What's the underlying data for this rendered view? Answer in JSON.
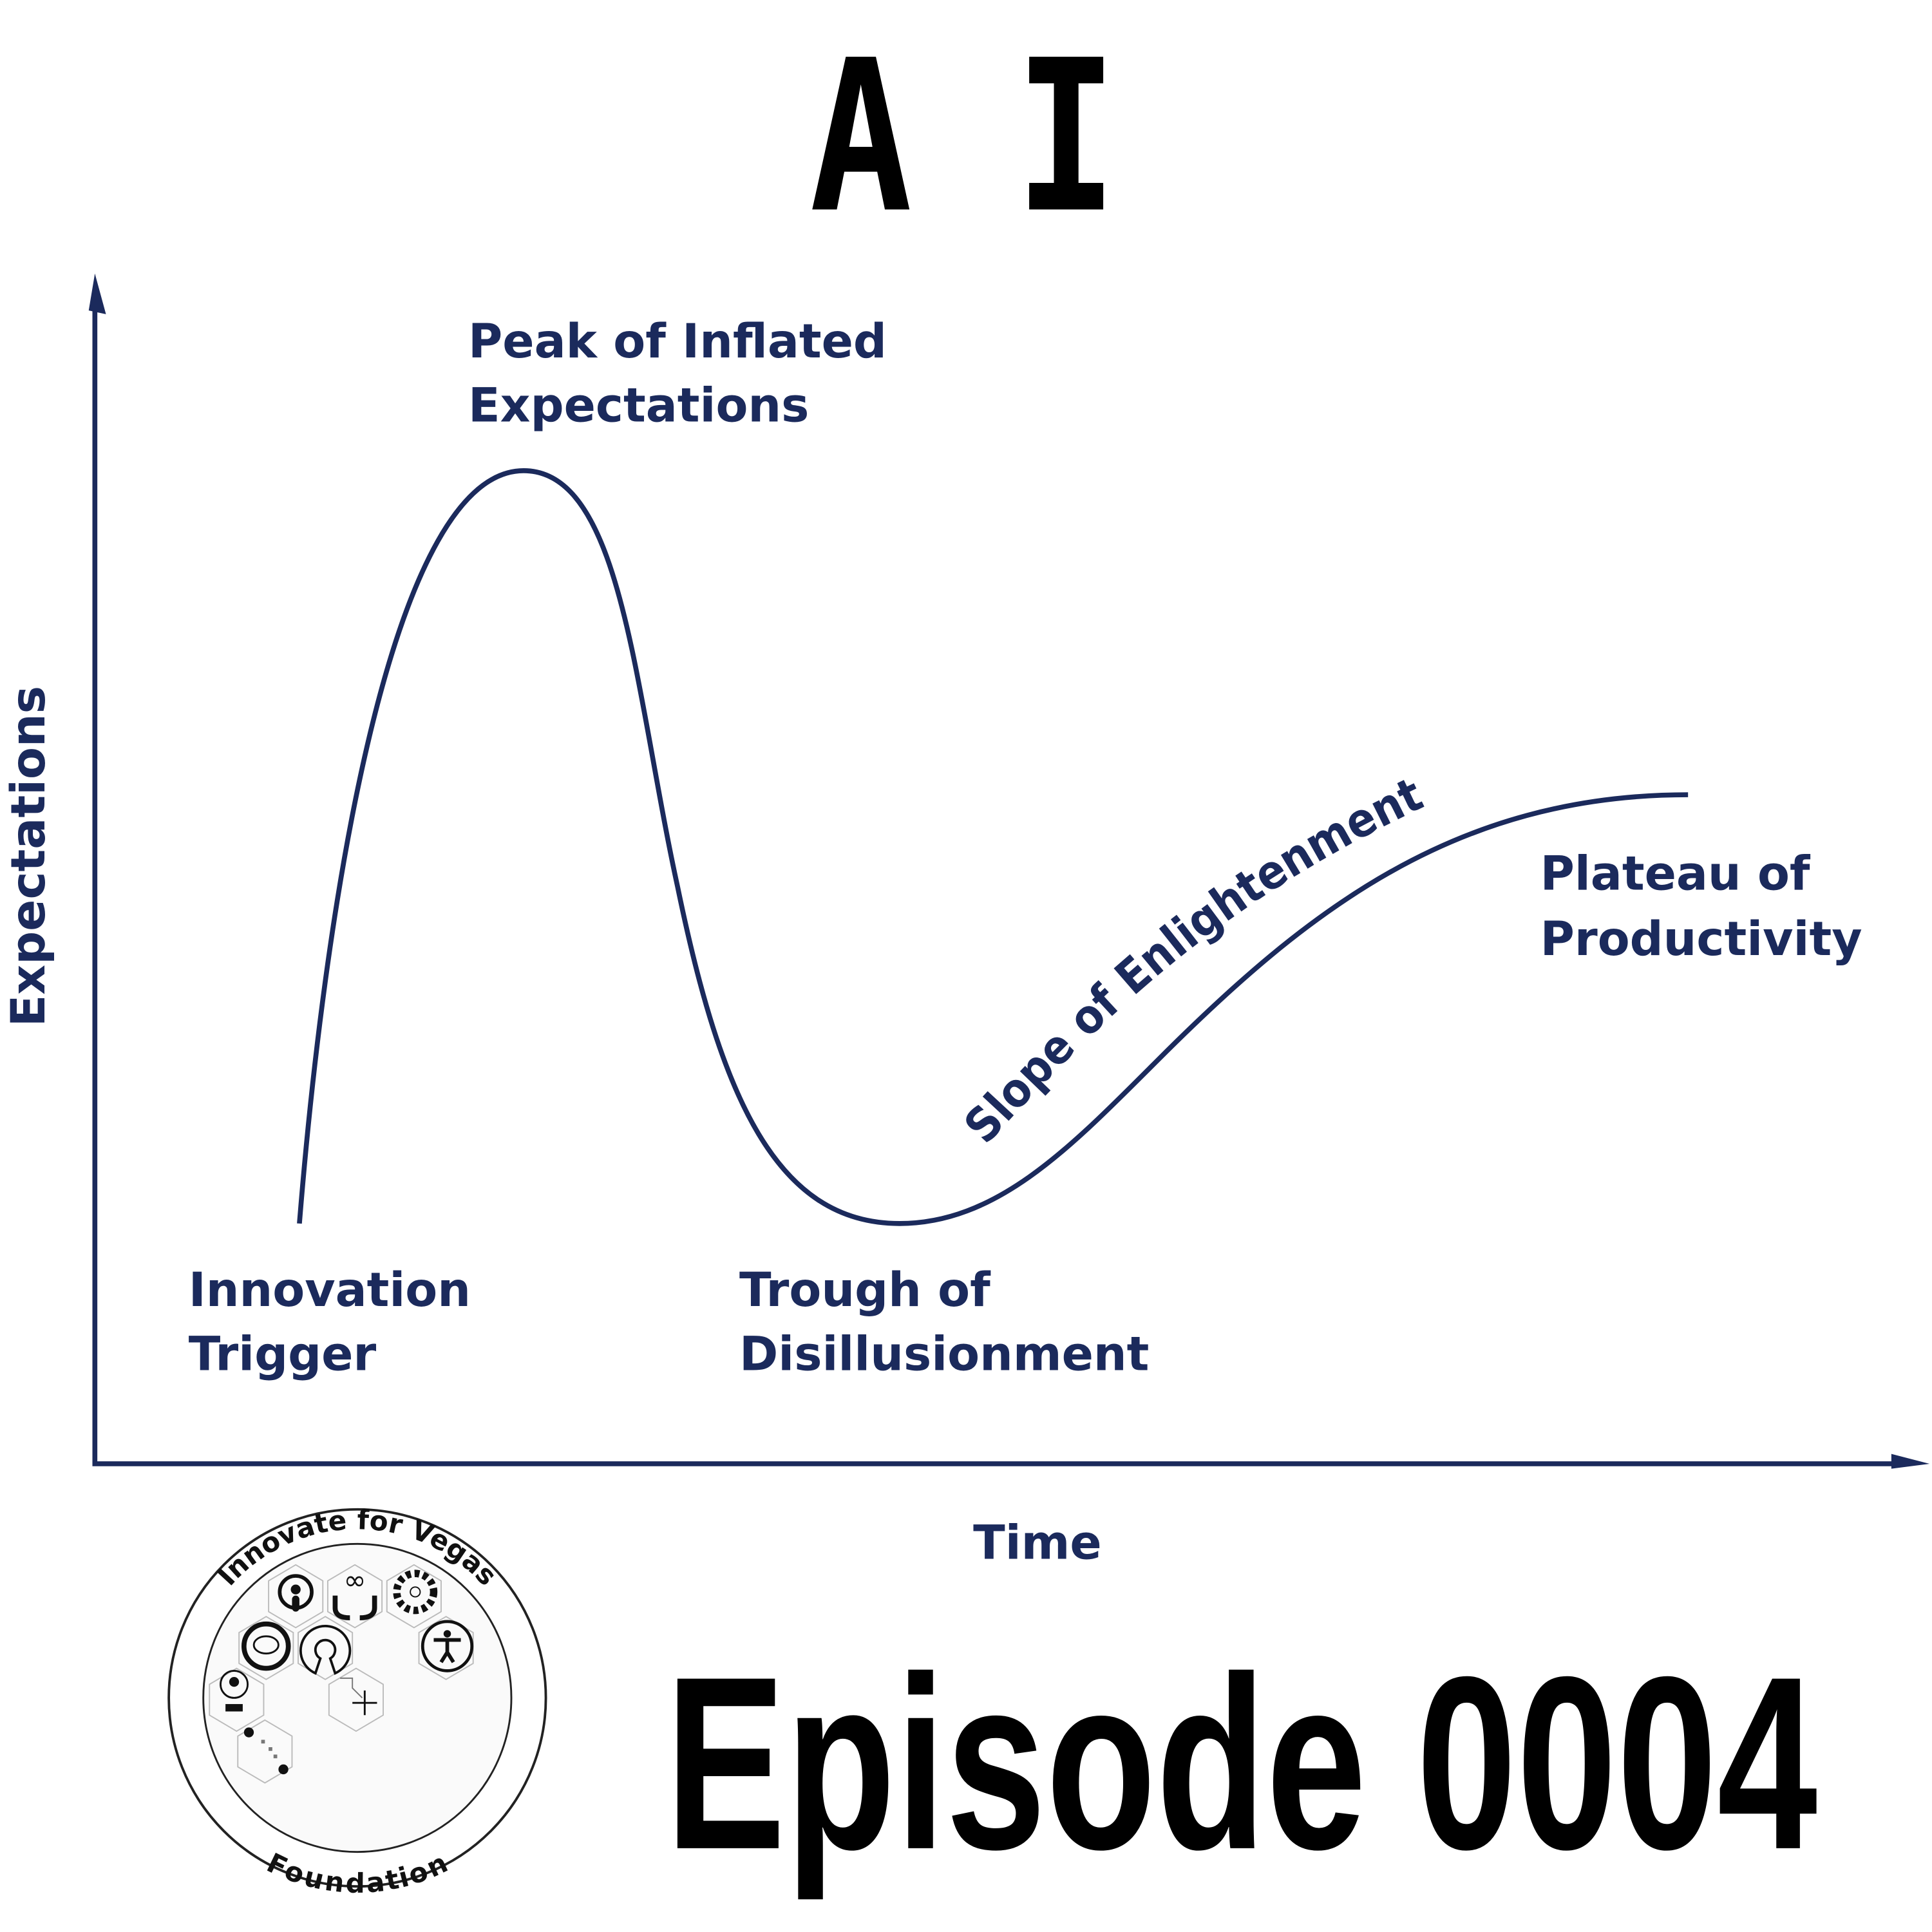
{
  "title": "A I",
  "episode": "Episode 0004",
  "diagram": {
    "type": "hype-cycle",
    "y_axis_label": "Expectations",
    "x_axis_label": "Time",
    "phases": {
      "innovation": [
        "Innovation",
        "Trigger"
      ],
      "peak": [
        "Peak of Inflated",
        "Expectations"
      ],
      "trough": [
        "Trough of",
        "Disillusionment"
      ],
      "slope": "Slope of Enlightenment",
      "plateau": [
        "Plateau of",
        "Productivity"
      ]
    },
    "colors": {
      "curve": "#1b2a5c",
      "text": "#1b2a5c"
    }
  },
  "logo": {
    "top_text": "Innovate for Vegas",
    "bottom_text": "Foundation",
    "icons": [
      "podcast-icon",
      "infinity-hands-icon",
      "community-icon",
      "brain-icon",
      "open-source-icon",
      "accessibility-icon",
      "lightbulb-gears-icon",
      "nevada-star-icon",
      "data-blocks-icon"
    ]
  }
}
